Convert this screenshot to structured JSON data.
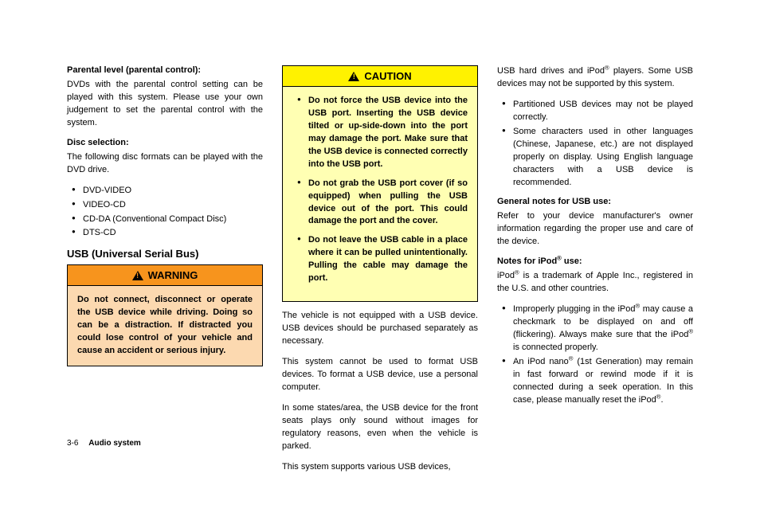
{
  "col1": {
    "h1": "Parental level (parental control):",
    "p1": "DVDs with the parental control setting can be played with this system. Please use your own judgement to set the parental control with the system.",
    "h2": "Disc selection:",
    "p2": "The following disc formats can be played with the DVD drive.",
    "discs": [
      "DVD-VIDEO",
      "VIDEO-CD",
      "CD-DA (Conventional Compact Disc)",
      "DTS-CD"
    ],
    "h3": "USB (Universal Serial Bus)",
    "warning_label": "WARNING",
    "warning_body": "Do not connect, disconnect or operate the USB device while driving. Doing so can be a distraction. If distracted you could lose control of your vehicle and cause an accident or serious injury."
  },
  "col2": {
    "caution_label": "CAUTION",
    "caution_items": [
      "Do not force the USB device into the USB port. Inserting the USB device tilted or up-side-down into the port may damage the port. Make sure that the USB device is connected correctly into the USB port.",
      "Do not grab the USB port cover (if so equipped) when pulling the USB device out of the port. This could damage the port and the cover.",
      "Do not leave the USB cable in a place where it can be pulled unintentionally. Pulling the cable may damage the port."
    ],
    "p1": "The vehicle is not equipped with a USB device. USB devices should be purchased separately as necessary.",
    "p2": "This system cannot be used to format USB devices. To format a USB device, use a personal computer.",
    "p3": "In some states/area, the USB device for the front seats plays only sound without images for regulatory reasons, even when the vehicle is parked.",
    "p4": "This system supports various USB devices,"
  },
  "col3": {
    "p1_a": "USB hard drives and iPod",
    "p1_b": " players. Some USB devices may not be supported by this system.",
    "bullets1": [
      "Partitioned USB devices may not be played correctly.",
      "Some characters used in other languages (Chinese, Japanese, etc.) are not displayed properly on display. Using English language characters with a USB device is recommended."
    ],
    "h1": "General notes for USB use:",
    "p2": "Refer to your device manufacturer's owner information regarding the proper use and care of the device.",
    "h2_a": "Notes for iPod",
    "h2_b": " use:",
    "p3_a": "iPod",
    "p3_b": " is a trademark of Apple Inc., registered in the U.S. and other countries.",
    "b2_1a": "Improperly plugging in the iPod",
    "b2_1b": " may cause a checkmark to be displayed on and off (flickering). Always make sure that the iPod",
    "b2_1c": " is connected properly.",
    "b2_2a": "An iPod nano",
    "b2_2b": " (1st Generation) may remain in fast forward or rewind mode if it is connected during a seek operation. In this case, please manually reset the iPod",
    "b2_2c": "."
  },
  "footer": {
    "page": "3-6",
    "section": "Audio system"
  },
  "reg": "®"
}
